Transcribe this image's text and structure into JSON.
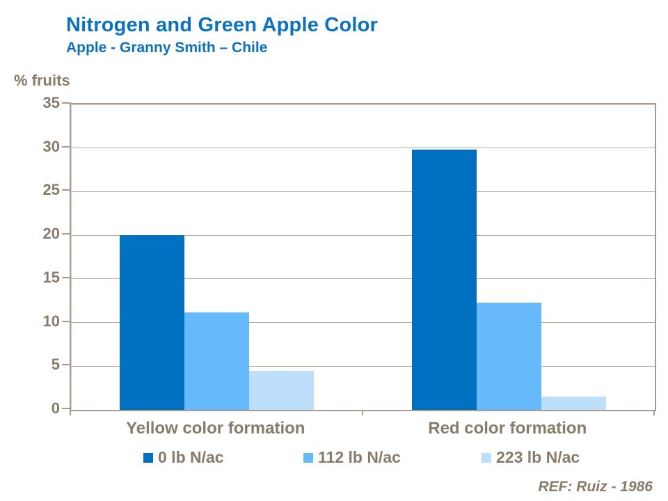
{
  "chart_data": {
    "type": "bar",
    "title": "Nitrogen and Green Apple Color",
    "subtitle": "Apple - Granny Smith – Chile",
    "y_axis_title": "% fruits",
    "categories": [
      "Yellow color formation",
      "Red color formation"
    ],
    "series": [
      {
        "name": "0 lb N/ac",
        "color": "#0070C0",
        "values": [
          20.0,
          29.8
        ]
      },
      {
        "name": "112 lb N/ac",
        "color": "#66B9FA",
        "values": [
          11.2,
          12.3
        ]
      },
      {
        "name": "223 lb N/ac",
        "color": "#BDDFFB",
        "values": [
          4.5,
          1.5
        ]
      }
    ],
    "ylim": [
      0,
      35
    ],
    "ytick_step": 5,
    "grid": true,
    "legend_position": "bottom",
    "reference": "REF: Ruiz - 1986"
  },
  "palette": {
    "title_blue": "#0B72C2",
    "axis_text_brown": "#8A7B69",
    "frame_tan": "#A69B8E",
    "gridline_tan": "#B3A99C"
  }
}
